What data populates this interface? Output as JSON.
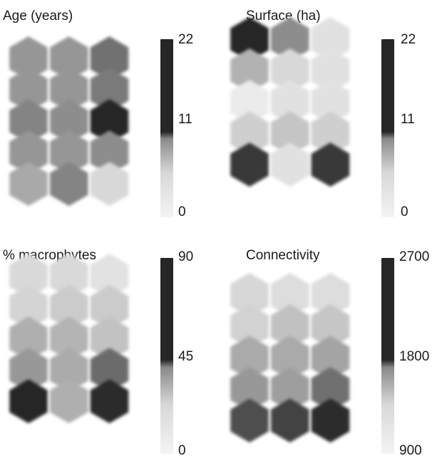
{
  "colors": {
    "low": "#f4f4f4",
    "high": "#262626"
  },
  "chart_data": [
    {
      "type": "heatmap",
      "title": "Age (years)",
      "colorbar": {
        "min": 0,
        "max": 22,
        "ticks": [
          "22",
          "11",
          "0"
        ]
      },
      "grid": {
        "rows": 5,
        "cols": 3
      },
      "values": [
        [
          10,
          10,
          14
        ],
        [
          10,
          10,
          13
        ],
        [
          12,
          11,
          22
        ],
        [
          10,
          10,
          11
        ],
        [
          8,
          12,
          3
        ]
      ]
    },
    {
      "type": "heatmap",
      "title": "Surface (ha)",
      "colorbar": {
        "min": 0,
        "max": 22,
        "ticks": [
          "22",
          "11",
          "0"
        ]
      },
      "grid": {
        "rows": 5,
        "cols": 3
      },
      "values": [
        [
          22,
          11,
          2
        ],
        [
          7,
          3,
          2
        ],
        [
          1,
          2,
          2
        ],
        [
          4,
          5,
          4
        ],
        [
          20,
          2,
          20
        ]
      ]
    },
    {
      "type": "heatmap",
      "title": "% macrophytes",
      "colorbar": {
        "min": 0,
        "max": 90,
        "ticks": [
          "90",
          "45",
          "0"
        ]
      },
      "grid": {
        "rows": 5,
        "cols": 3
      },
      "values": [
        [
          12,
          12,
          8
        ],
        [
          14,
          18,
          18
        ],
        [
          30,
          28,
          22
        ],
        [
          40,
          32,
          60
        ],
        [
          90,
          30,
          88
        ]
      ]
    },
    {
      "type": "heatmap",
      "title": "Connectivity",
      "colorbar": {
        "min": 900,
        "max": 2700,
        "ticks": [
          "2700",
          "1800",
          "900"
        ]
      },
      "grid": {
        "rows": 5,
        "cols": 3
      },
      "values": [
        [
          1150,
          1100,
          1100
        ],
        [
          1200,
          1350,
          1300
        ],
        [
          1550,
          1550,
          1600
        ],
        [
          1700,
          1650,
          2050
        ],
        [
          2350,
          2450,
          2650
        ]
      ]
    }
  ]
}
